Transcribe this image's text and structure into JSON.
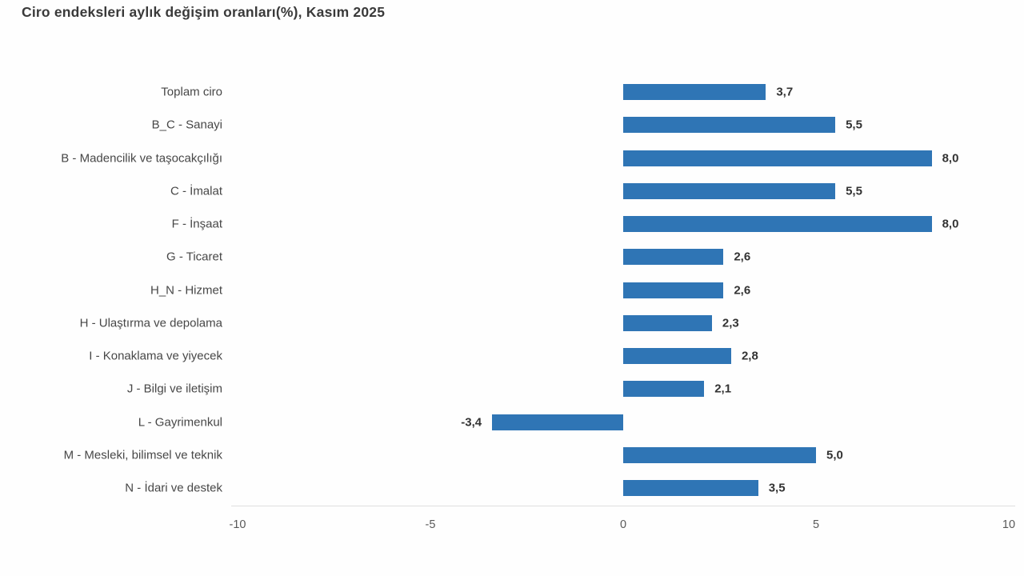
{
  "title": "Ciro endeksleri aylık değişim oranları(%), Kasım 2025",
  "chart_data": {
    "type": "bar",
    "orientation": "horizontal",
    "title": "Ciro endeksleri aylık değişim oranları(%), Kasım 2025",
    "categories": [
      "Toplam ciro",
      "B_C - Sanayi",
      "B - Madencilik ve taşocakçılığı",
      "C - İmalat",
      "F - İnşaat",
      "G - Ticaret",
      "H_N - Hizmet",
      "H - Ulaştırma ve depolama",
      "I - Konaklama ve yiyecek",
      "J - Bilgi ve iletişim",
      "L - Gayrimenkul",
      "M - Mesleki, bilimsel ve teknik",
      "N - İdari ve destek"
    ],
    "values": [
      3.7,
      5.5,
      8.0,
      5.5,
      8.0,
      2.6,
      2.6,
      2.3,
      2.8,
      2.1,
      -3.4,
      5.0,
      3.5
    ],
    "value_labels": [
      "3,7",
      "5,5",
      "8,0",
      "5,5",
      "8,0",
      "2,6",
      "2,6",
      "2,3",
      "2,8",
      "2,1",
      "-3,4",
      "5,0",
      "3,5"
    ],
    "xlabel": "",
    "ylabel": "",
    "xlim": [
      -10,
      10
    ],
    "x_ticks": [
      "-10",
      "-5",
      "0",
      "5",
      "10"
    ],
    "bar_color": "#2F75B5",
    "grid": false,
    "legend": false
  }
}
